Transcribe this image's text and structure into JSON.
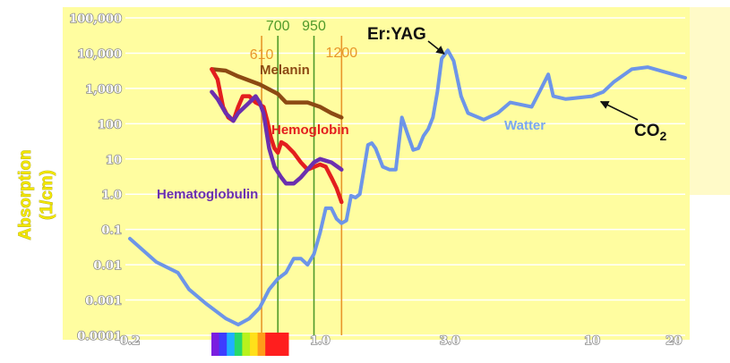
{
  "chart_data": {
    "type": "line",
    "ylabel": "Absorption",
    "ylabel_unit": "(1/cm)",
    "yscale": "log",
    "xscale": "log",
    "ylim": [
      0.0001,
      100000
    ],
    "xlim": [
      0.2,
      22
    ],
    "yticks": [
      {
        "value": 0.0001,
        "label": "0.0001"
      },
      {
        "value": 0.001,
        "label": "0.001"
      },
      {
        "value": 0.01,
        "label": "0.01"
      },
      {
        "value": 0.1,
        "label": "0.1"
      },
      {
        "value": 1,
        "label": "1.0"
      },
      {
        "value": 10,
        "label": "10"
      },
      {
        "value": 100,
        "label": "100"
      },
      {
        "value": 1000,
        "label": "1,000"
      },
      {
        "value": 10000,
        "label": "10,000"
      },
      {
        "value": 100000,
        "label": "100,000"
      }
    ],
    "xticks": [
      {
        "value": 0.2,
        "label": "0.2"
      },
      {
        "value": 1.0,
        "label": "1.0"
      },
      {
        "value": 3.0,
        "label": "3.0"
      },
      {
        "value": 10,
        "label": "10"
      },
      {
        "value": 20,
        "label": "20"
      }
    ],
    "vlines": [
      {
        "label": "610",
        "x": 0.61,
        "color": "#e8962a"
      },
      {
        "label": "700",
        "x": 0.7,
        "color": "#4f9a2a"
      },
      {
        "label": "950",
        "x": 0.95,
        "color": "#4f9a2a"
      },
      {
        "label": "1200",
        "x": 1.2,
        "color": "#e8962a"
      }
    ],
    "series": [
      {
        "name": "Watter",
        "color": "#6d95e8",
        "points": [
          [
            0.2,
            0.055
          ],
          [
            0.25,
            0.012
          ],
          [
            0.3,
            0.006
          ],
          [
            0.33,
            0.002
          ],
          [
            0.38,
            0.0008
          ],
          [
            0.45,
            0.0003
          ],
          [
            0.5,
            0.0002
          ],
          [
            0.55,
            0.0003
          ],
          [
            0.6,
            0.0006
          ],
          [
            0.65,
            0.002
          ],
          [
            0.7,
            0.004
          ],
          [
            0.75,
            0.006
          ],
          [
            0.8,
            0.015
          ],
          [
            0.85,
            0.015
          ],
          [
            0.9,
            0.01
          ],
          [
            0.95,
            0.02
          ],
          [
            1.0,
            0.08
          ],
          [
            1.05,
            0.4
          ],
          [
            1.1,
            0.4
          ],
          [
            1.15,
            0.2
          ],
          [
            1.2,
            0.15
          ],
          [
            1.25,
            0.18
          ],
          [
            1.3,
            0.9
          ],
          [
            1.35,
            0.8
          ],
          [
            1.4,
            1.0
          ],
          [
            1.45,
            5.0
          ],
          [
            1.5,
            25
          ],
          [
            1.55,
            28
          ],
          [
            1.6,
            20
          ],
          [
            1.7,
            6
          ],
          [
            1.8,
            5
          ],
          [
            1.9,
            5
          ],
          [
            2.0,
            150
          ],
          [
            2.1,
            50
          ],
          [
            2.2,
            18
          ],
          [
            2.3,
            20
          ],
          [
            2.4,
            45
          ],
          [
            2.5,
            70
          ],
          [
            2.6,
            150
          ],
          [
            2.7,
            800
          ],
          [
            2.8,
            7000
          ],
          [
            2.95,
            12000
          ],
          [
            3.1,
            6000
          ],
          [
            3.3,
            600
          ],
          [
            3.5,
            200
          ],
          [
            4.0,
            130
          ],
          [
            4.5,
            200
          ],
          [
            5.0,
            400
          ],
          [
            6.0,
            300
          ],
          [
            6.5,
            1000
          ],
          [
            6.9,
            2500
          ],
          [
            7.2,
            600
          ],
          [
            8.0,
            500
          ],
          [
            10,
            600
          ],
          [
            11,
            800
          ],
          [
            12,
            1500
          ],
          [
            14,
            3500
          ],
          [
            16,
            4000
          ],
          [
            22,
            2000
          ]
        ]
      },
      {
        "name": "Melanin",
        "color": "#8c4a13",
        "points": [
          [
            0.4,
            3500
          ],
          [
            0.45,
            3200
          ],
          [
            0.5,
            2200
          ],
          [
            0.6,
            1300
          ],
          [
            0.7,
            700
          ],
          [
            0.75,
            400
          ],
          [
            0.8,
            400
          ],
          [
            0.9,
            400
          ],
          [
            1.0,
            300
          ],
          [
            1.1,
            200
          ],
          [
            1.2,
            150
          ]
        ]
      },
      {
        "name": "Hemoglobin",
        "color": "#e31e1e",
        "points": [
          [
            0.4,
            3500
          ],
          [
            0.42,
            1800
          ],
          [
            0.44,
            300
          ],
          [
            0.46,
            150
          ],
          [
            0.48,
            120
          ],
          [
            0.5,
            300
          ],
          [
            0.52,
            600
          ],
          [
            0.55,
            600
          ],
          [
            0.58,
            400
          ],
          [
            0.6,
            350
          ],
          [
            0.62,
            300
          ],
          [
            0.64,
            120
          ],
          [
            0.66,
            40
          ],
          [
            0.68,
            20
          ],
          [
            0.7,
            15
          ],
          [
            0.72,
            30
          ],
          [
            0.75,
            25
          ],
          [
            0.8,
            15
          ],
          [
            0.85,
            8
          ],
          [
            0.9,
            5
          ],
          [
            1.0,
            7
          ],
          [
            1.05,
            6
          ],
          [
            1.1,
            3
          ],
          [
            1.15,
            1.5
          ],
          [
            1.2,
            0.6
          ]
        ]
      },
      {
        "name": "Hematoglobulin",
        "color": "#6b2faf",
        "points": [
          [
            0.4,
            800
          ],
          [
            0.42,
            500
          ],
          [
            0.45,
            200
          ],
          [
            0.48,
            120
          ],
          [
            0.5,
            200
          ],
          [
            0.55,
            400
          ],
          [
            0.58,
            600
          ],
          [
            0.6,
            400
          ],
          [
            0.62,
            200
          ],
          [
            0.65,
            20
          ],
          [
            0.68,
            6
          ],
          [
            0.72,
            3
          ],
          [
            0.75,
            2
          ],
          [
            0.8,
            2
          ],
          [
            0.85,
            3
          ],
          [
            0.9,
            5
          ],
          [
            0.95,
            8
          ],
          [
            1.0,
            10
          ],
          [
            1.1,
            8
          ],
          [
            1.2,
            5
          ]
        ]
      }
    ],
    "annotations": [
      {
        "text": "Er:YAG",
        "x": 2.95,
        "y": 12000
      },
      {
        "text": "CO",
        "sub": "2",
        "x": 10.6,
        "y": 600
      }
    ]
  }
}
